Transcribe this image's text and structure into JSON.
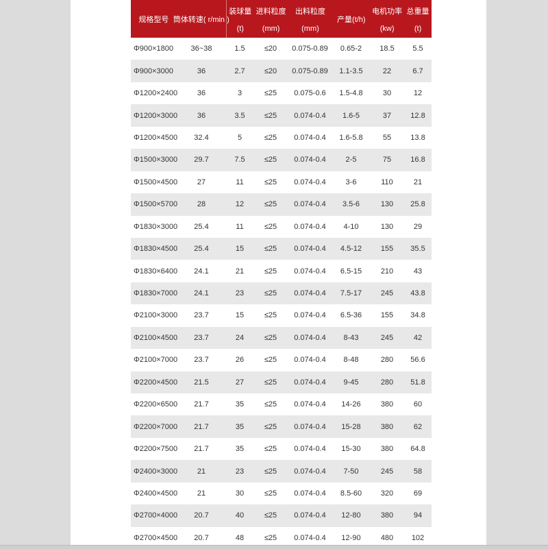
{
  "table": {
    "headers": [
      {
        "line1": "规格型号",
        "line2": ""
      },
      {
        "line1": "筒体转速( r/min )",
        "line2": ""
      },
      {
        "line1": "装球量",
        "line2": "(t)"
      },
      {
        "line1": "进料粒度",
        "line2": "(mm)"
      },
      {
        "line1": "出料粒度",
        "line2": "(mm)"
      },
      {
        "line1": "产量(t/h)",
        "line2": ""
      },
      {
        "line1": "电机功率",
        "line2": "(kw)"
      },
      {
        "line1": "总重量",
        "line2": "(t)"
      }
    ],
    "rows": [
      [
        "Φ900×1800",
        "36~38",
        "1.5",
        "≤20",
        "0.075-0.89",
        "0.65-2",
        "18.5",
        "5.5"
      ],
      [
        "Φ900×3000",
        "36",
        "2.7",
        "≤20",
        "0.075-0.89",
        "1.1-3.5",
        "22",
        "6.7"
      ],
      [
        "Φ1200×2400",
        "36",
        "3",
        "≤25",
        "0.075-0.6",
        "1.5-4.8",
        "30",
        "12"
      ],
      [
        "Φ1200×3000",
        "36",
        "3.5",
        "≤25",
        "0.074-0.4",
        "1.6-5",
        "37",
        "12.8"
      ],
      [
        "Φ1200×4500",
        "32.4",
        "5",
        "≤25",
        "0.074-0.4",
        "1.6-5.8",
        "55",
        "13.8"
      ],
      [
        "Φ1500×3000",
        "29.7",
        "7.5",
        "≤25",
        "0.074-0.4",
        "2-5",
        "75",
        "16.8"
      ],
      [
        "Φ1500×4500",
        "27",
        "11",
        "≤25",
        "0.074-0.4",
        "3-6",
        "110",
        "21"
      ],
      [
        "Φ1500×5700",
        "28",
        "12",
        "≤25",
        "0.074-0.4",
        "3.5-6",
        "130",
        "25.8"
      ],
      [
        "Φ1830×3000",
        "25.4",
        "11",
        "≤25",
        "0.074-0.4",
        "4-10",
        "130",
        "29"
      ],
      [
        "Φ1830×4500",
        "25.4",
        "15",
        "≤25",
        "0.074-0.4",
        "4.5-12",
        "155",
        "35.5"
      ],
      [
        "Φ1830×6400",
        "24.1",
        "21",
        "≤25",
        "0.074-0.4",
        "6.5-15",
        "210",
        "43"
      ],
      [
        "Φ1830×7000",
        "24.1",
        "23",
        "≤25",
        "0.074-0.4",
        "7.5-17",
        "245",
        "43.8"
      ],
      [
        "Φ2100×3000",
        "23.7",
        "15",
        "≤25",
        "0.074-0.4",
        "6.5-36",
        "155",
        "34.8"
      ],
      [
        "Φ2100×4500",
        "23.7",
        "24",
        "≤25",
        "0.074-0.4",
        "8-43",
        "245",
        "42"
      ],
      [
        "Φ2100×7000",
        "23.7",
        "26",
        "≤25",
        "0.074-0.4",
        "8-48",
        "280",
        "56.6"
      ],
      [
        "Φ2200×4500",
        "21.5",
        "27",
        "≤25",
        "0.074-0.4",
        "9-45",
        "280",
        "51.8"
      ],
      [
        "Φ2200×6500",
        "21.7",
        "35",
        "≤25",
        "0.074-0.4",
        "14-26",
        "380",
        "60"
      ],
      [
        "Φ2200×7000",
        "21.7",
        "35",
        "≤25",
        "0.074-0.4",
        "15-28",
        "380",
        "62"
      ],
      [
        "Φ2200×7500",
        "21.7",
        "35",
        "≤25",
        "0.074-0.4",
        "15-30",
        "380",
        "64.8"
      ],
      [
        "Φ2400×3000",
        "21",
        "23",
        "≤25",
        "0.074-0.4",
        "7-50",
        "245",
        "58"
      ],
      [
        "Φ2400×4500",
        "21",
        "30",
        "≤25",
        "0.074-0.4",
        "8.5-60",
        "320",
        "69"
      ],
      [
        "Φ2700×4000",
        "20.7",
        "40",
        "≤25",
        "0.074-0.4",
        "12-80",
        "380",
        "94"
      ],
      [
        "Φ2700×4500",
        "20.7",
        "48",
        "≤25",
        "0.074-0.4",
        "12-90",
        "480",
        "102"
      ]
    ],
    "header_color": "#b8171e",
    "stripe_color": "#e8e8e8"
  }
}
